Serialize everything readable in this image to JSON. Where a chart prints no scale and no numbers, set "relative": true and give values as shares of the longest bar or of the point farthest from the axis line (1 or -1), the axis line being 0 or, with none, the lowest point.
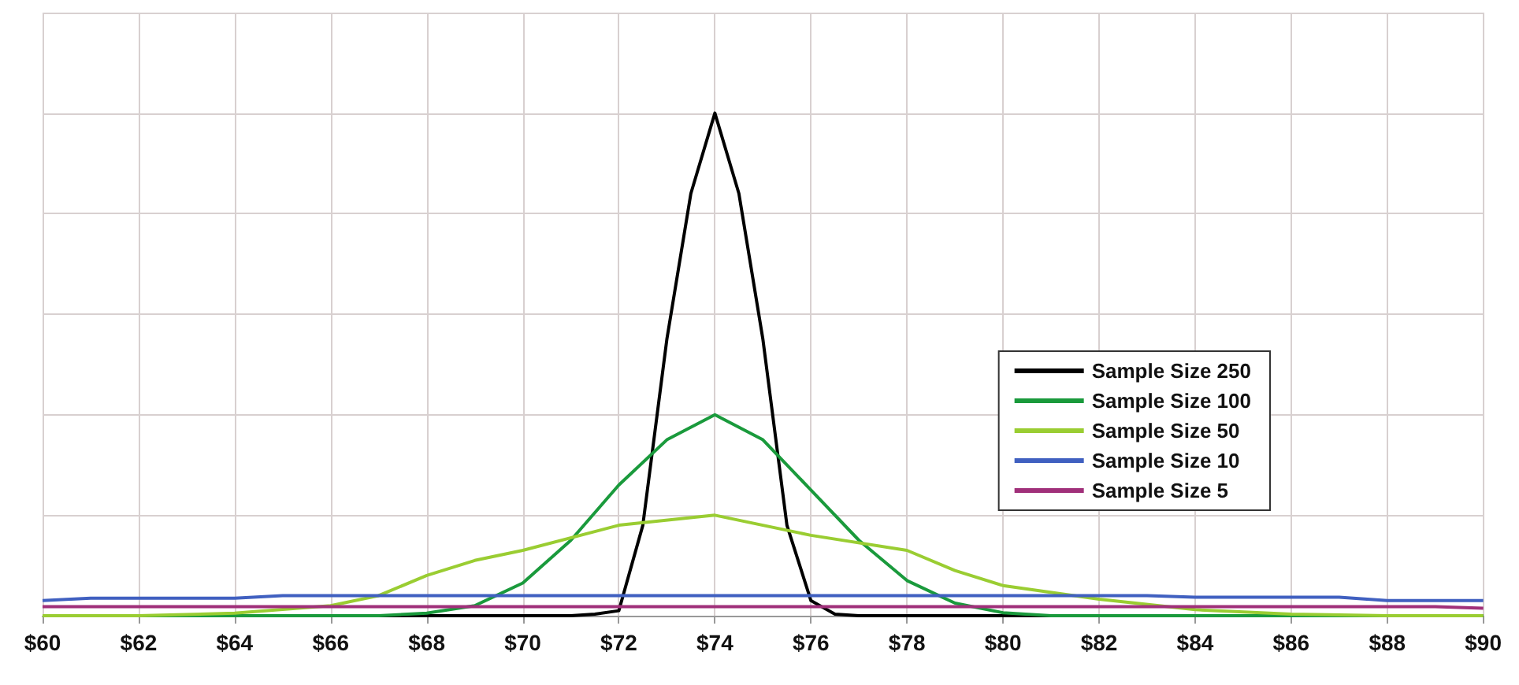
{
  "chart_data": {
    "type": "line",
    "relative": true,
    "xlim": [
      60,
      90
    ],
    "xticks": [
      {
        "value": 60,
        "label": "$60"
      },
      {
        "value": 62,
        "label": "$62"
      },
      {
        "value": 64,
        "label": "$64"
      },
      {
        "value": 66,
        "label": "$66"
      },
      {
        "value": 68,
        "label": "$68"
      },
      {
        "value": 70,
        "label": "$70"
      },
      {
        "value": 72,
        "label": "$72"
      },
      {
        "value": 74,
        "label": "$74"
      },
      {
        "value": 76,
        "label": "$76"
      },
      {
        "value": 78,
        "label": "$78"
      },
      {
        "value": 80,
        "label": "$80"
      },
      {
        "value": 82,
        "label": "$82"
      },
      {
        "value": 84,
        "label": "$84"
      },
      {
        "value": 86,
        "label": "$86"
      },
      {
        "value": 88,
        "label": "$88"
      },
      {
        "value": 90,
        "label": "$90"
      }
    ],
    "grid": true,
    "legend": "right",
    "marker": "none",
    "line_style": "solid",
    "series": [
      {
        "name": "Sample Size 250",
        "color": "#000000",
        "x": [
          60,
          70,
          71,
          71.5,
          72,
          72.5,
          73,
          73.5,
          74,
          74.5,
          75,
          75.5,
          76,
          76.5,
          77,
          78,
          90
        ],
        "values": [
          0,
          0,
          0,
          0.003,
          0.01,
          0.18,
          0.55,
          0.84,
          1,
          0.84,
          0.55,
          0.18,
          0.03,
          0.003,
          0,
          0,
          0
        ]
      },
      {
        "name": "Sample Size 100",
        "color": "#1a9a3c",
        "x": [
          60,
          67,
          68,
          69,
          70,
          71,
          72,
          73,
          74,
          75,
          76,
          77,
          78,
          79,
          80,
          81,
          90
        ],
        "values": [
          0,
          0,
          0.005,
          0.02,
          0.065,
          0.15,
          0.26,
          0.35,
          0.4,
          0.35,
          0.25,
          0.15,
          0.07,
          0.025,
          0.006,
          0,
          0
        ]
      },
      {
        "name": "Sample Size 50",
        "color": "#9acd32",
        "x": [
          60,
          62,
          64,
          66,
          67,
          68,
          69,
          70,
          72,
          74,
          76,
          78,
          79,
          80,
          82,
          84,
          86,
          88,
          90
        ],
        "values": [
          0,
          0,
          0.005,
          0.02,
          0.04,
          0.08,
          0.11,
          0.13,
          0.18,
          0.2,
          0.16,
          0.13,
          0.09,
          0.06,
          0.033,
          0.012,
          0.003,
          0,
          0
        ]
      },
      {
        "name": "Sample Size 10",
        "color": "#4060c0",
        "x": [
          60,
          61,
          64,
          65,
          70,
          72,
          83,
          84,
          87,
          88,
          90
        ],
        "values": [
          0.03,
          0.035,
          0.035,
          0.04,
          0.04,
          0.04,
          0.04,
          0.037,
          0.037,
          0.03,
          0.03
        ]
      },
      {
        "name": "Sample Size 5",
        "color": "#a0307a",
        "x": [
          60,
          89,
          90
        ],
        "values": [
          0.018,
          0.018,
          0.015
        ]
      }
    ]
  }
}
